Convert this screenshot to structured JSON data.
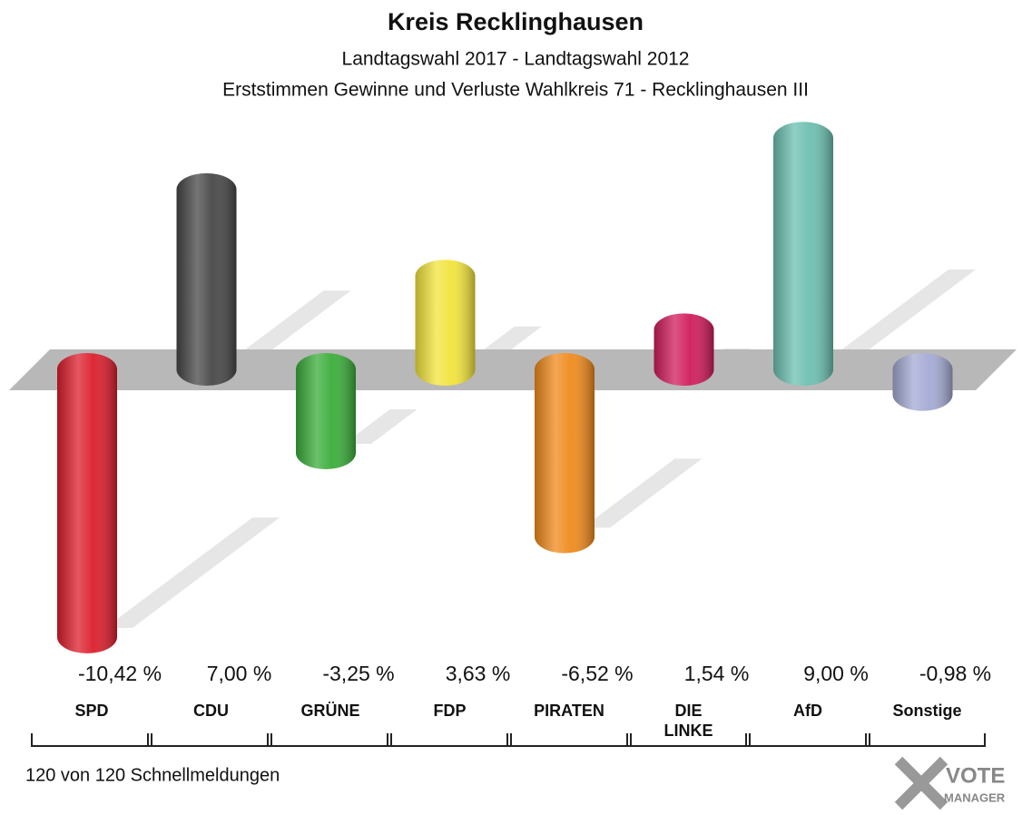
{
  "chart_data": {
    "type": "bar",
    "title": "Kreis Recklinghausen",
    "subtitle": "Landtagswahl 2017 - Landtagswahl 2012",
    "subtitle2": "Erststimmen Gewinne und Verluste Wahlkreis 71 - Recklinghausen III",
    "categories": [
      "SPD",
      "CDU",
      "GRÜNE",
      "FDP",
      "PIRATEN",
      "DIE LINKE",
      "AfD",
      "Sonstige"
    ],
    "values": [
      -10.42,
      7.0,
      -3.25,
      3.63,
      -6.52,
      1.54,
      9.0,
      -0.98
    ],
    "value_labels": [
      "-10,42 %",
      "7,00 %",
      "-3,25 %",
      "3,63 %",
      "-6,52 %",
      "1,54 %",
      "9,00 %",
      "-0,98 %"
    ],
    "colors": [
      "#dc1e2c",
      "#474747",
      "#3aad3a",
      "#f2e43c",
      "#f08a1c",
      "#d01c5c",
      "#6cc0b0",
      "#a4aad4"
    ],
    "footnote": "120 von 120 Schnellmeldungen",
    "logo": [
      "VOTE",
      "MANAGER"
    ]
  }
}
